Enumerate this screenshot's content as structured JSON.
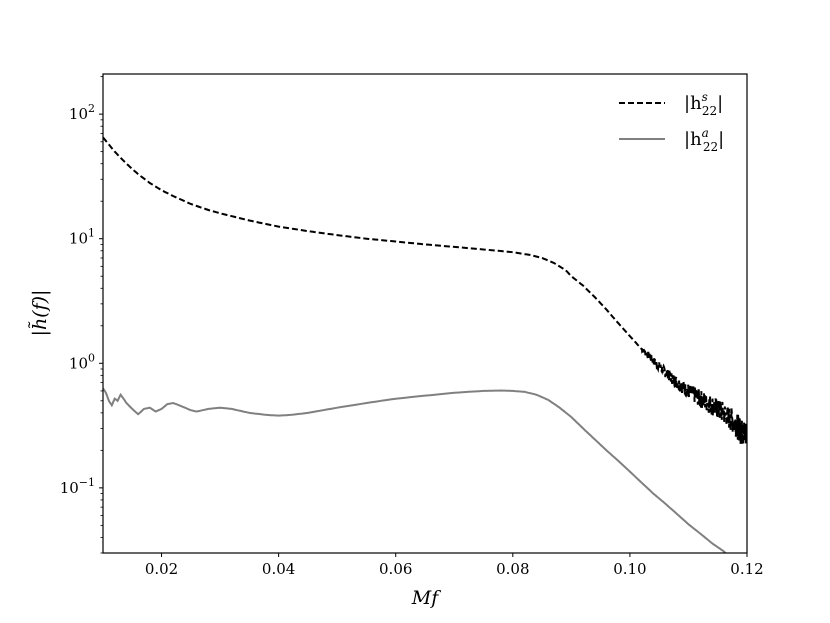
{
  "chart_data": {
    "type": "line",
    "title": "",
    "xlabel": "Mf",
    "ylabel": "|h̃(f)|",
    "x_scale": "linear",
    "y_scale": "log",
    "xlim": [
      0.01,
      0.12
    ],
    "ylim": [
      0.03,
      210
    ],
    "x_ticks": [
      0.02,
      0.04,
      0.06,
      0.08,
      0.1,
      0.12
    ],
    "x_tick_labels": [
      "0.02",
      "0.04",
      "0.06",
      "0.08",
      "0.10",
      "0.12"
    ],
    "y_ticks": [
      0.1,
      1,
      10,
      100
    ],
    "y_tick_labels": [
      {
        "base": "10",
        "exp": "−1"
      },
      {
        "base": "10",
        "exp": "0"
      },
      {
        "base": "10",
        "exp": "1"
      },
      {
        "base": "10",
        "exp": "2"
      }
    ],
    "grid": false,
    "legend": {
      "placement": "top-right",
      "entries": [
        {
          "label_base": "|h",
          "label_sup": "s",
          "label_sub": "22",
          "label_close": "|",
          "style": "dashed",
          "color": "#000000"
        },
        {
          "label_base": "|h",
          "label_sup": "a",
          "label_sub": "22",
          "label_close": "|",
          "style": "solid",
          "color": "#808080"
        }
      ]
    },
    "series": [
      {
        "style": "dashed",
        "color": "#000000",
        "x": [
          0.01,
          0.012,
          0.014,
          0.016,
          0.018,
          0.02,
          0.022,
          0.025,
          0.028,
          0.03,
          0.035,
          0.04,
          0.045,
          0.05,
          0.055,
          0.06,
          0.065,
          0.07,
          0.075,
          0.08,
          0.083,
          0.085,
          0.087,
          0.089,
          0.09,
          0.092,
          0.094,
          0.096,
          0.098,
          0.1,
          0.102,
          0.104,
          0.106,
          0.108,
          0.11,
          0.112,
          0.114,
          0.116,
          0.118,
          0.119,
          0.12
        ],
        "y": [
          65,
          50,
          40,
          33,
          28,
          24.5,
          22,
          19,
          17,
          16,
          14,
          12.5,
          11.5,
          10.7,
          10.0,
          9.5,
          9.0,
          8.6,
          8.2,
          7.8,
          7.4,
          7.0,
          6.4,
          5.6,
          5.0,
          4.2,
          3.4,
          2.7,
          2.1,
          1.65,
          1.3,
          1.05,
          0.85,
          0.7,
          0.6,
          0.52,
          0.46,
          0.4,
          0.33,
          0.28,
          0.27
        ],
        "noise_start": 0.102
      },
      {
        "style": "solid",
        "color": "#808080",
        "x": [
          0.01,
          0.0105,
          0.011,
          0.0115,
          0.012,
          0.0125,
          0.013,
          0.0135,
          0.014,
          0.015,
          0.016,
          0.017,
          0.018,
          0.019,
          0.02,
          0.021,
          0.022,
          0.023,
          0.024,
          0.025,
          0.026,
          0.028,
          0.03,
          0.032,
          0.035,
          0.038,
          0.04,
          0.042,
          0.045,
          0.05,
          0.055,
          0.06,
          0.065,
          0.07,
          0.075,
          0.078,
          0.08,
          0.082,
          0.084,
          0.086,
          0.088,
          0.09,
          0.092,
          0.094,
          0.096,
          0.098,
          0.1,
          0.102,
          0.104,
          0.106,
          0.108,
          0.11,
          0.112,
          0.114,
          0.116,
          0.117
        ],
        "y": [
          0.63,
          0.58,
          0.5,
          0.46,
          0.52,
          0.5,
          0.56,
          0.52,
          0.48,
          0.43,
          0.39,
          0.43,
          0.44,
          0.41,
          0.43,
          0.47,
          0.48,
          0.46,
          0.44,
          0.42,
          0.41,
          0.43,
          0.44,
          0.43,
          0.4,
          0.385,
          0.38,
          0.385,
          0.4,
          0.44,
          0.48,
          0.52,
          0.55,
          0.58,
          0.6,
          0.605,
          0.6,
          0.59,
          0.56,
          0.51,
          0.44,
          0.37,
          0.3,
          0.245,
          0.2,
          0.165,
          0.135,
          0.11,
          0.09,
          0.075,
          0.062,
          0.051,
          0.043,
          0.036,
          0.031,
          0.028
        ]
      }
    ]
  }
}
